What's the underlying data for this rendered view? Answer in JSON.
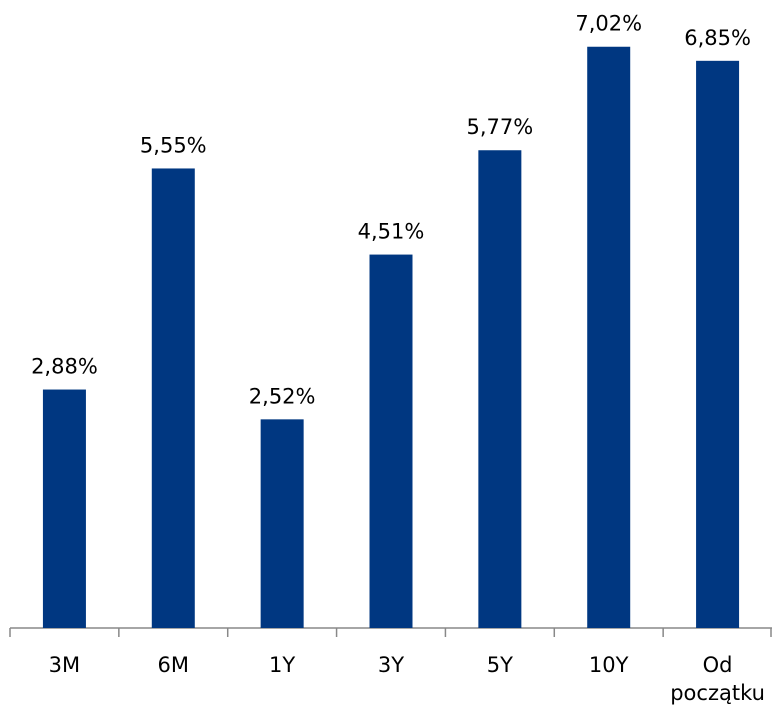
{
  "chart_data": {
    "type": "bar",
    "categories": [
      "3M",
      "6M",
      "1Y",
      "3Y",
      "5Y",
      "10Y",
      "Od początku"
    ],
    "values": [
      2.88,
      5.55,
      2.52,
      4.51,
      5.77,
      7.02,
      6.85
    ],
    "value_labels": [
      "2,88%",
      "5,55%",
      "2,52%",
      "4,51%",
      "5,77%",
      "7,02%",
      "6,85%"
    ],
    "color": "#003781",
    "ylim": [
      0,
      7.5
    ]
  }
}
